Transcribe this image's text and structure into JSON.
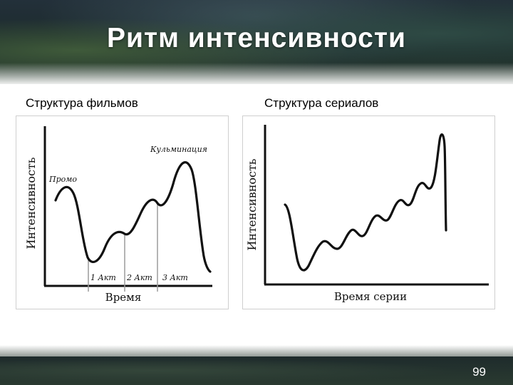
{
  "slide": {
    "title": "Ритм интенсивности",
    "page_number": "99"
  },
  "left": {
    "caption": "Структура фильмов",
    "ylabel": "Интенсивность",
    "xlabel": "Время",
    "labels": {
      "hook": "Промо",
      "climax": "Кульминация",
      "act1": "1 Акт",
      "act2": "2 Акт",
      "act3": "3 Акт"
    }
  },
  "right": {
    "caption": "Структура сериалов",
    "ylabel": "Интенсивность",
    "xlabel": "Время серии"
  },
  "colors": {
    "curve": "#111111",
    "axis": "#111111",
    "act_line": "#9a9a9a"
  }
}
